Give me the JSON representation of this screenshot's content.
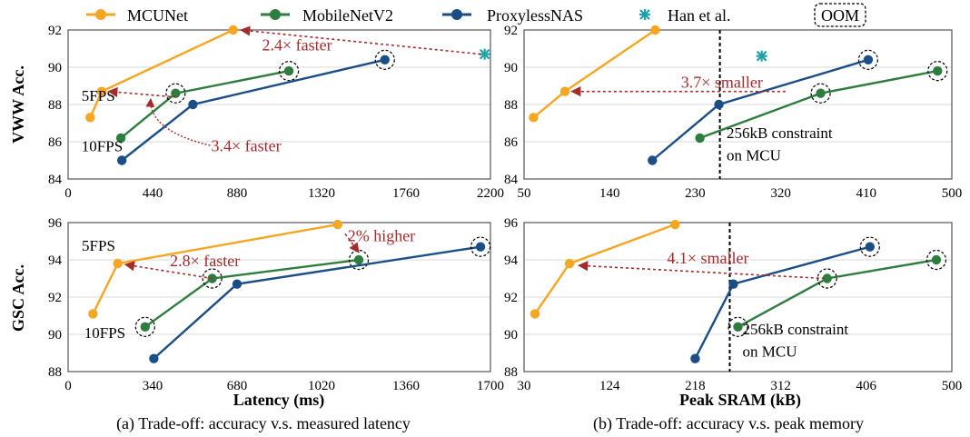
{
  "legend": {
    "items": [
      {
        "label": "MCUNet",
        "color": "#F5A623",
        "marker": "circle"
      },
      {
        "label": "MobileNetV2",
        "color": "#2E7D3E",
        "marker": "circle"
      },
      {
        "label": "ProxylessNAS",
        "color": "#1B4E86",
        "marker": "circle"
      },
      {
        "label": "Han et al.",
        "color": "#1FA3A8",
        "marker": "star"
      },
      {
        "label": "OOM",
        "color": "#000000",
        "marker": "dashed-box"
      }
    ]
  },
  "captions": {
    "a": "(a) Trade-off: accuracy v.s. measured latency",
    "b": "(b) Trade-off: accuracy v.s. peak memory"
  },
  "chart_data": [
    {
      "id": "vww_latency",
      "type": "line",
      "ylabel": "VWW Acc.",
      "xlabel": "",
      "xlim": [
        0,
        2200
      ],
      "ylim": [
        84,
        92
      ],
      "xticks": [
        0,
        440,
        880,
        1320,
        1760,
        2200
      ],
      "yticks": [
        84,
        86,
        88,
        90,
        92
      ],
      "series": [
        {
          "name": "MCUNet",
          "x": [
            115,
            175,
            860
          ],
          "y": [
            87.3,
            88.7,
            92.0
          ],
          "oom": [
            false,
            false,
            false
          ]
        },
        {
          "name": "MobileNetV2",
          "x": [
            275,
            560,
            1150
          ],
          "y": [
            86.2,
            88.6,
            89.8
          ],
          "oom": [
            false,
            true,
            true
          ]
        },
        {
          "name": "ProxylessNAS",
          "x": [
            280,
            650,
            1650
          ],
          "y": [
            85.0,
            88.0,
            90.4
          ],
          "oom": [
            false,
            false,
            true
          ]
        },
        {
          "name": "Han et al.",
          "x": [
            2170
          ],
          "y": [
            90.7
          ],
          "oom": [
            false
          ]
        }
      ],
      "annotations": [
        {
          "text": "2.4× faster",
          "x": 1010,
          "y": 90.9
        },
        {
          "text": "5FPS",
          "x": 70,
          "y": 88.2
        },
        {
          "text": "10FPS",
          "x": 70,
          "y": 85.5
        },
        {
          "text": "3.4× faster",
          "x": 745,
          "y": 85.5
        }
      ]
    },
    {
      "id": "vww_memory",
      "type": "line",
      "ylabel": "",
      "xlabel": "",
      "xlim": [
        50,
        500
      ],
      "ylim": [
        84,
        92
      ],
      "xticks": [
        50,
        140,
        230,
        320,
        410,
        500
      ],
      "yticks": [
        84,
        86,
        88,
        90,
        92
      ],
      "series": [
        {
          "name": "MCUNet",
          "x": [
            60,
            93,
            188
          ],
          "y": [
            87.3,
            88.7,
            92.0
          ],
          "oom": [
            false,
            false,
            false
          ]
        },
        {
          "name": "MobileNetV2",
          "x": [
            235,
            362,
            485
          ],
          "y": [
            86.2,
            88.6,
            89.8
          ],
          "oom": [
            false,
            true,
            true
          ]
        },
        {
          "name": "ProxylessNAS",
          "x": [
            185,
            255,
            412
          ],
          "y": [
            85.0,
            88.0,
            90.4
          ],
          "oom": [
            false,
            false,
            true
          ]
        },
        {
          "name": "Han et al.",
          "x": [
            300
          ],
          "y": [
            90.6
          ],
          "oom": [
            false
          ]
        }
      ],
      "annotations": [
        {
          "text": "3.7× smaller",
          "x": 215,
          "y": 88.9
        },
        {
          "text": "256kB constraint",
          "x": 263,
          "y": 86.2
        },
        {
          "text": "on MCU",
          "x": 263,
          "y": 85.0
        }
      ]
    },
    {
      "id": "gsc_latency",
      "type": "line",
      "ylabel": "GSC Acc.",
      "xlabel": "Latency (ms)",
      "xlim": [
        0,
        1700
      ],
      "ylim": [
        88,
        96
      ],
      "xticks": [
        0,
        340,
        680,
        1020,
        1360,
        1700
      ],
      "yticks": [
        88,
        90,
        92,
        94,
        96
      ],
      "series": [
        {
          "name": "MCUNet",
          "x": [
            100,
            200,
            1085
          ],
          "y": [
            91.1,
            93.8,
            95.9
          ],
          "oom": [
            false,
            false,
            false
          ]
        },
        {
          "name": "MobileNetV2",
          "x": [
            310,
            580,
            1170
          ],
          "y": [
            90.4,
            93.0,
            94.0
          ],
          "oom": [
            true,
            true,
            true
          ]
        },
        {
          "name": "ProxylessNAS",
          "x": [
            345,
            680,
            1660
          ],
          "y": [
            88.7,
            92.7,
            94.7
          ],
          "oom": [
            false,
            false,
            true
          ]
        }
      ],
      "annotations": [
        {
          "text": "2.8× faster",
          "x": 410,
          "y": 93.65
        },
        {
          "text": "5FPS",
          "x": 55,
          "y": 94.5
        },
        {
          "text": "10FPS",
          "x": 65,
          "y": 89.8
        },
        {
          "text": "2% higher",
          "x": 1125,
          "y": 95.0
        }
      ]
    },
    {
      "id": "gsc_memory",
      "type": "line",
      "ylabel": "",
      "xlabel": "Peak SRAM (kB)",
      "xlim": [
        30,
        500
      ],
      "ylim": [
        88,
        96
      ],
      "xticks": [
        30,
        124,
        218,
        312,
        406,
        500
      ],
      "yticks": [
        88,
        90,
        92,
        94,
        96
      ],
      "series": [
        {
          "name": "MCUNet",
          "x": [
            42,
            80,
            196
          ],
          "y": [
            91.1,
            93.8,
            95.9
          ],
          "oom": [
            false,
            false,
            false
          ]
        },
        {
          "name": "MobileNetV2",
          "x": [
            265,
            363,
            483
          ],
          "y": [
            90.4,
            93.0,
            94.0
          ],
          "oom": [
            true,
            true,
            true
          ]
        },
        {
          "name": "ProxylessNAS",
          "x": [
            218,
            260,
            410
          ],
          "y": [
            88.7,
            92.7,
            94.7
          ],
          "oom": [
            false,
            false,
            true
          ]
        }
      ],
      "annotations": [
        {
          "text": "4.1× smaller",
          "x": 187,
          "y": 93.8
        },
        {
          "text": "256kB constraint",
          "x": 270,
          "y": 90.0
        },
        {
          "text": "on MCU",
          "x": 270,
          "y": 88.8
        }
      ]
    }
  ]
}
